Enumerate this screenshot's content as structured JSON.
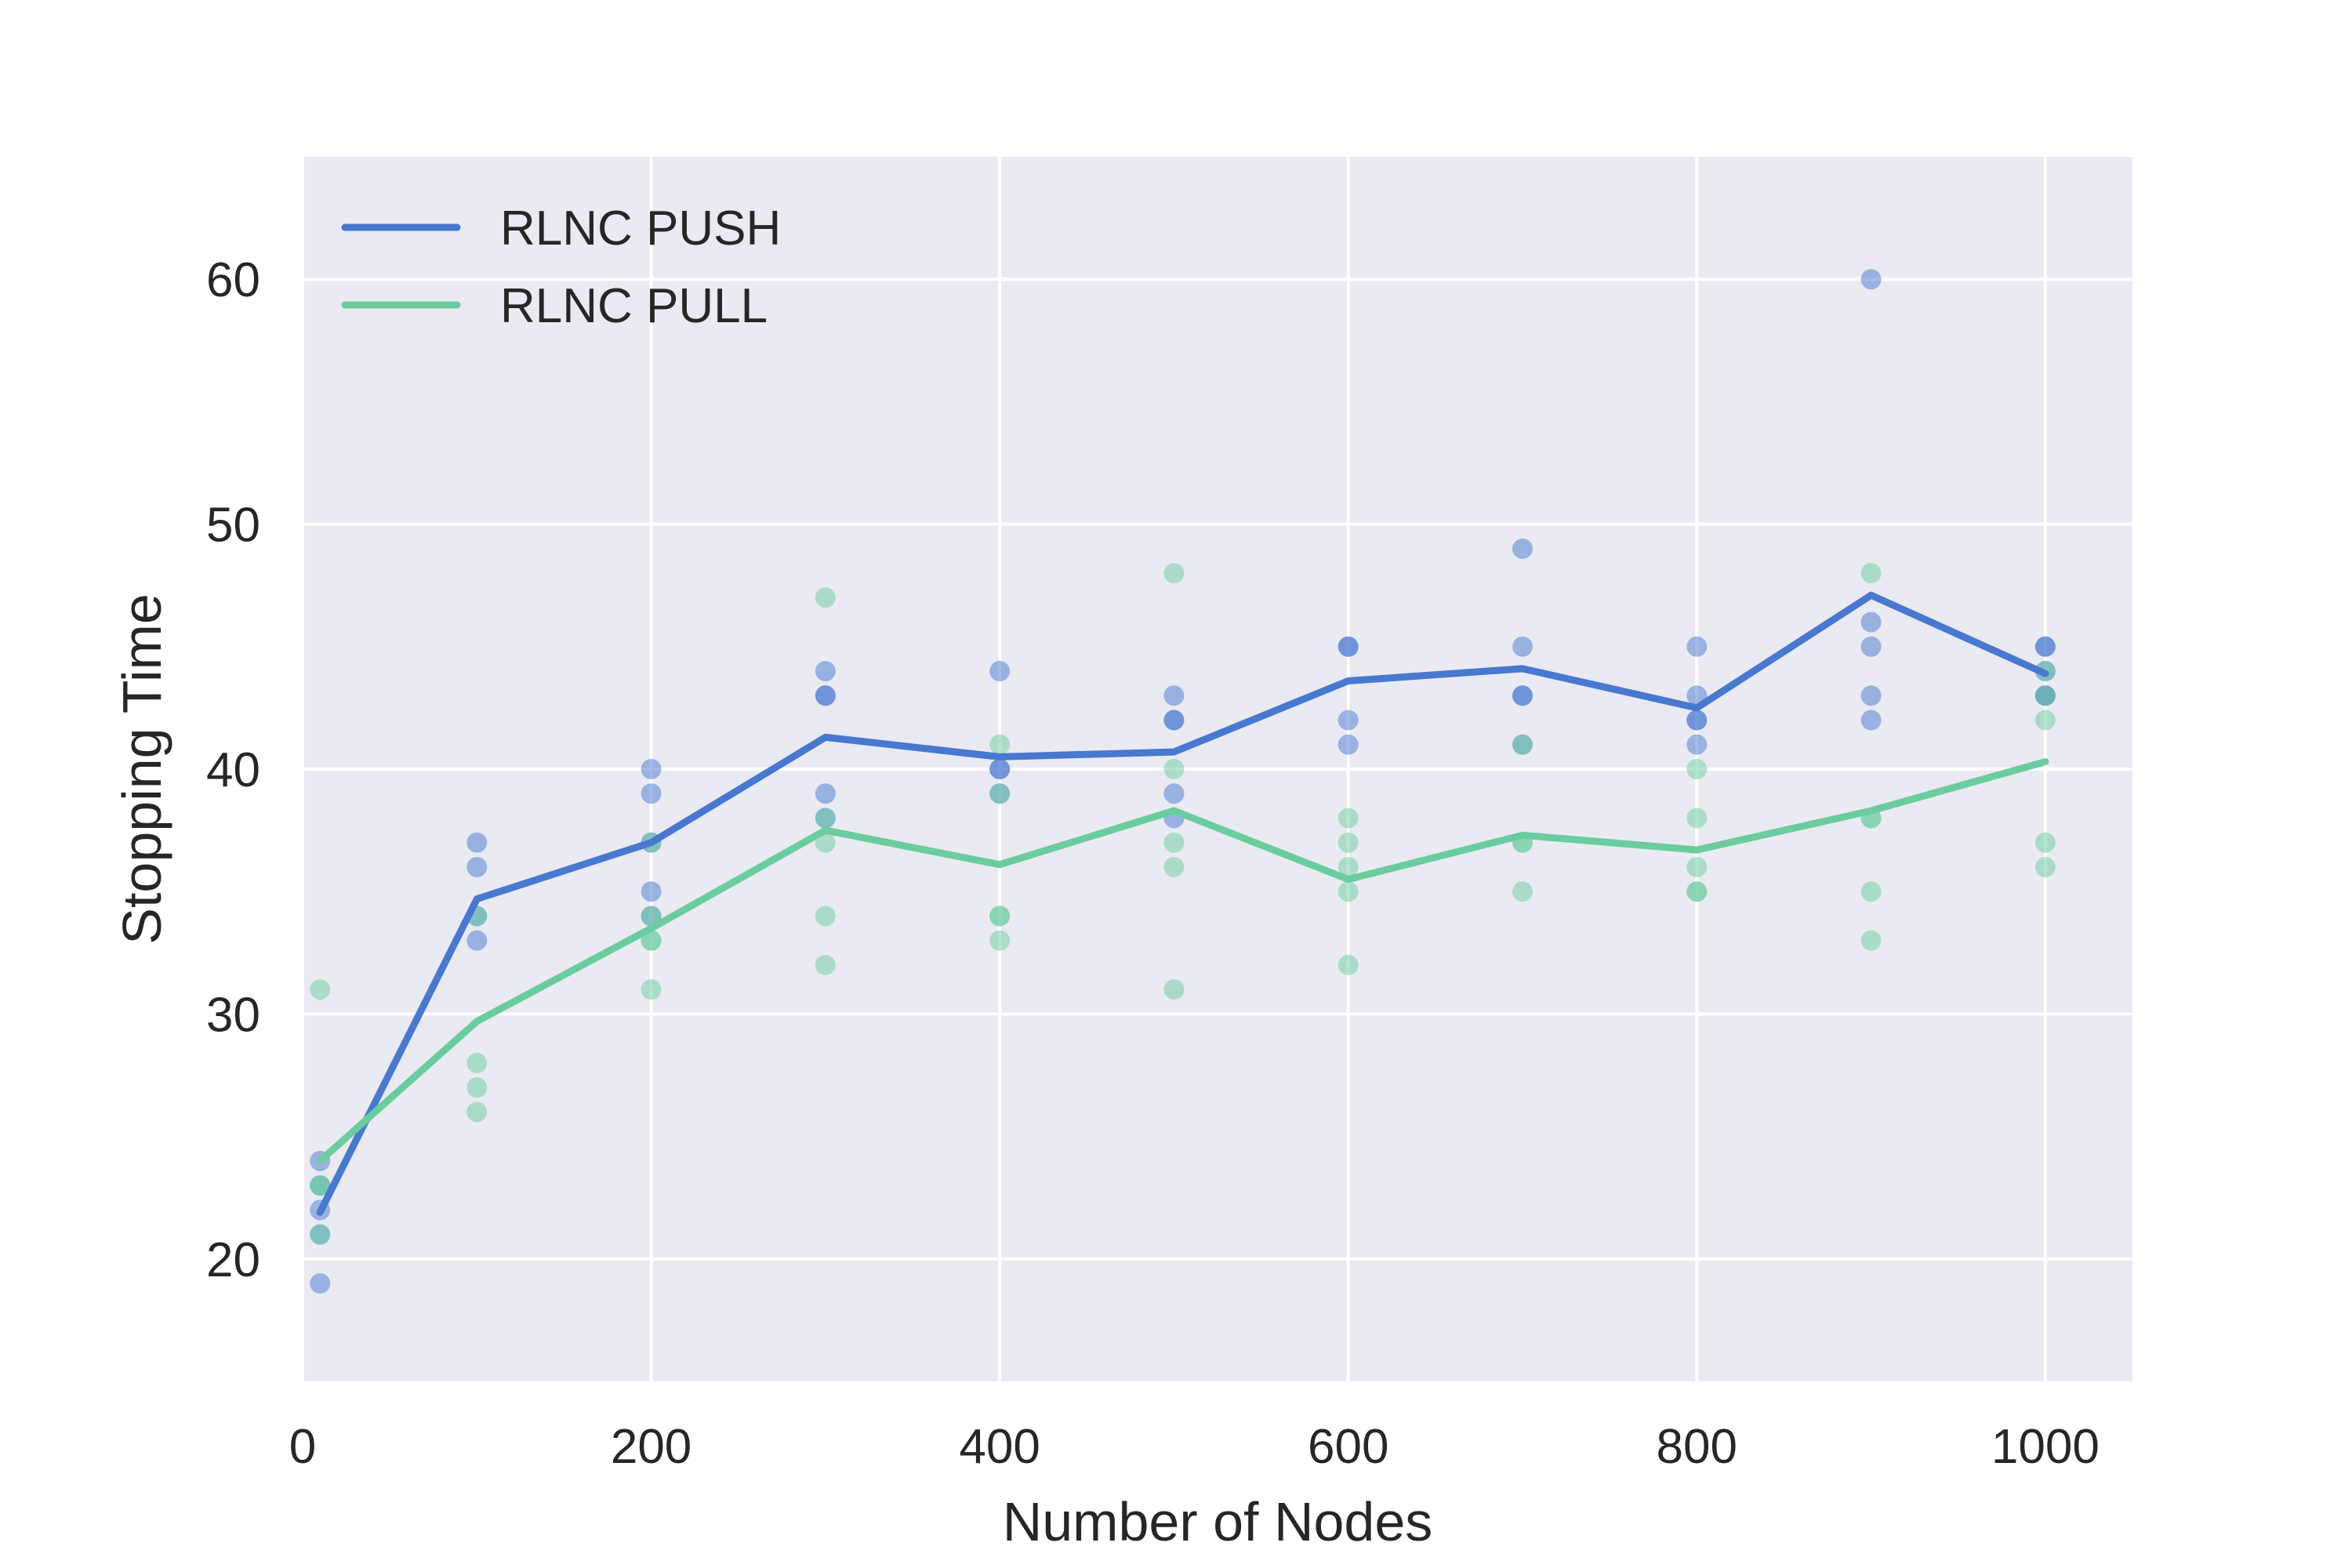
{
  "chart_data": {
    "type": "line",
    "title": "",
    "xlabel": "Number of Nodes",
    "ylabel": "Stopping Time",
    "xlim": [
      0,
      1050
    ],
    "ylim": [
      15,
      65
    ],
    "xticks": [
      0,
      200,
      400,
      600,
      800,
      1000
    ],
    "yticks": [
      20,
      30,
      40,
      50,
      60
    ],
    "grid": true,
    "legend_position": "top-left",
    "series": [
      {
        "name": "RLNC PUSH",
        "color": "#4878cf",
        "x": [
          10,
          100,
          200,
          300,
          400,
          500,
          600,
          700,
          800,
          900,
          1000
        ],
        "y": [
          21.9,
          34.7,
          37.0,
          41.3,
          40.5,
          40.7,
          43.6,
          44.1,
          42.5,
          47.1,
          43.9
        ],
        "points": [
          [
            10,
            24
          ],
          [
            10,
            22
          ],
          [
            10,
            21
          ],
          [
            10,
            19
          ],
          [
            10,
            23
          ],
          [
            100,
            37
          ],
          [
            100,
            36
          ],
          [
            100,
            34
          ],
          [
            100,
            33
          ],
          [
            200,
            40
          ],
          [
            200,
            39
          ],
          [
            200,
            37
          ],
          [
            200,
            35
          ],
          [
            200,
            34
          ],
          [
            300,
            44
          ],
          [
            300,
            43
          ],
          [
            300,
            43
          ],
          [
            300,
            39
          ],
          [
            300,
            38
          ],
          [
            400,
            44
          ],
          [
            400,
            40
          ],
          [
            400,
            40
          ],
          [
            400,
            39
          ],
          [
            500,
            43
          ],
          [
            500,
            42
          ],
          [
            500,
            42
          ],
          [
            500,
            39
          ],
          [
            500,
            38
          ],
          [
            600,
            45
          ],
          [
            600,
            45
          ],
          [
            600,
            42
          ],
          [
            600,
            41
          ],
          [
            700,
            49
          ],
          [
            700,
            45
          ],
          [
            700,
            43
          ],
          [
            700,
            43
          ],
          [
            700,
            41
          ],
          [
            800,
            45
          ],
          [
            800,
            43
          ],
          [
            800,
            42
          ],
          [
            800,
            42
          ],
          [
            800,
            41
          ],
          [
            900,
            60
          ],
          [
            900,
            46
          ],
          [
            900,
            45
          ],
          [
            900,
            43
          ],
          [
            900,
            42
          ],
          [
            1000,
            45
          ],
          [
            1000,
            45
          ],
          [
            1000,
            44
          ],
          [
            1000,
            43
          ],
          [
            1000,
            43
          ]
        ]
      },
      {
        "name": "RLNC PULL",
        "color": "#6acc9f",
        "x": [
          10,
          100,
          200,
          300,
          400,
          500,
          600,
          700,
          800,
          900,
          1000
        ],
        "y": [
          24.0,
          29.7,
          33.5,
          37.5,
          36.1,
          38.3,
          35.5,
          37.3,
          36.7,
          38.3,
          40.3
        ],
        "points": [
          [
            10,
            31
          ],
          [
            10,
            23
          ],
          [
            10,
            23
          ],
          [
            10,
            21
          ],
          [
            100,
            34
          ],
          [
            100,
            28
          ],
          [
            100,
            27
          ],
          [
            100,
            26
          ],
          [
            200,
            37
          ],
          [
            200,
            34
          ],
          [
            200,
            33
          ],
          [
            200,
            33
          ],
          [
            200,
            31
          ],
          [
            300,
            47
          ],
          [
            300,
            38
          ],
          [
            300,
            37
          ],
          [
            300,
            34
          ],
          [
            300,
            32
          ],
          [
            400,
            41
          ],
          [
            400,
            39
          ],
          [
            400,
            34
          ],
          [
            400,
            34
          ],
          [
            400,
            33
          ],
          [
            500,
            48
          ],
          [
            500,
            40
          ],
          [
            500,
            37
          ],
          [
            500,
            36
          ],
          [
            500,
            31
          ],
          [
            600,
            38
          ],
          [
            600,
            37
          ],
          [
            600,
            36
          ],
          [
            600,
            35
          ],
          [
            600,
            32
          ],
          [
            700,
            41
          ],
          [
            700,
            37
          ],
          [
            700,
            37
          ],
          [
            700,
            35
          ],
          [
            800,
            40
          ],
          [
            800,
            38
          ],
          [
            800,
            36
          ],
          [
            800,
            35
          ],
          [
            800,
            35
          ],
          [
            900,
            48
          ],
          [
            900,
            38
          ],
          [
            900,
            38
          ],
          [
            900,
            35
          ],
          [
            900,
            33
          ],
          [
            1000,
            44
          ],
          [
            1000,
            43
          ],
          [
            1000,
            42
          ],
          [
            1000,
            37
          ],
          [
            1000,
            36
          ]
        ]
      }
    ]
  }
}
